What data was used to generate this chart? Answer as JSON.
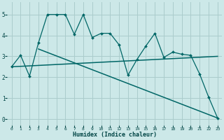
{
  "xlabel": "Humidex (Indice chaleur)",
  "bg_color": "#cce8e8",
  "grid_color": "#aacccc",
  "line_color": "#006666",
  "xlim": [
    -0.5,
    23.5
  ],
  "ylim": [
    -0.3,
    5.6
  ],
  "xticks": [
    0,
    1,
    2,
    3,
    4,
    5,
    6,
    7,
    8,
    9,
    10,
    11,
    12,
    13,
    14,
    15,
    16,
    17,
    18,
    19,
    20,
    21,
    22,
    23
  ],
  "yticks": [
    0,
    1,
    2,
    3,
    4,
    5
  ],
  "line1_x": [
    0,
    1,
    2,
    3,
    4,
    5,
    6,
    7,
    8,
    9,
    10,
    11,
    12,
    13,
    14,
    15,
    16,
    17,
    18,
    19,
    20,
    21,
    22,
    23
  ],
  "line1_y": [
    2.5,
    3.05,
    2.05,
    3.65,
    5.0,
    5.0,
    5.0,
    4.05,
    5.0,
    3.9,
    4.1,
    4.1,
    3.55,
    2.1,
    2.85,
    3.5,
    4.1,
    2.95,
    3.2,
    3.1,
    3.05,
    2.15,
    1.05,
    0.05
  ],
  "line2_x": [
    3,
    23
  ],
  "line2_y": [
    3.35,
    0.05
  ],
  "line3_x": [
    0,
    23
  ],
  "line3_y": [
    2.5,
    3.0
  ]
}
